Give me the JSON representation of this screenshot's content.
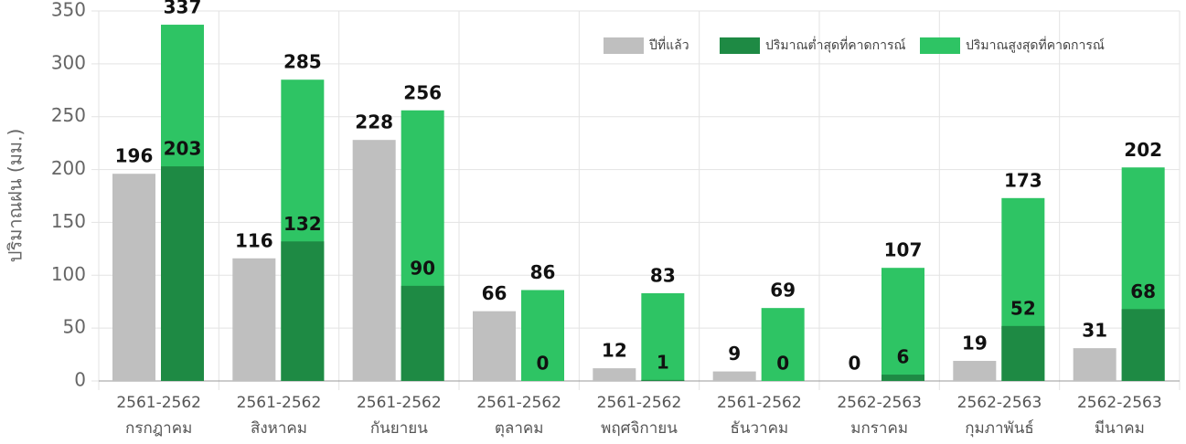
{
  "chart_data": {
    "type": "bar",
    "y_label": "ปริมาณฝน (มม.)",
    "categories": [
      [
        "2561-2562",
        "กรกฎาคม"
      ],
      [
        "2561-2562",
        "สิงหาคม"
      ],
      [
        "2561-2562",
        "กันยายน"
      ],
      [
        "2561-2562",
        "ตุลาคม"
      ],
      [
        "2561-2562",
        "พฤศจิกายน"
      ],
      [
        "2561-2562",
        "ธันวาคม"
      ],
      [
        "2562-2563",
        "มกราคม"
      ],
      [
        "2562-2563",
        "กุมภาพันธ์"
      ],
      [
        "2562-2563",
        "มีนาคม"
      ]
    ],
    "series": [
      {
        "name": "ปีที่แล้ว",
        "color": "#bfbfbf",
        "values": [
          196,
          116,
          228,
          66,
          12,
          9,
          0,
          19,
          31
        ]
      },
      {
        "name": "ปริมาณต่ำสุดที่คาดการณ์",
        "color": "#1e8a44",
        "values": [
          203,
          132,
          90,
          0,
          1,
          0,
          6,
          52,
          68
        ]
      },
      {
        "name": "ปริมาณสูงสุดที่คาดการณ์",
        "color": "#2ec464",
        "values": [
          337,
          285,
          256,
          86,
          83,
          69,
          107,
          173,
          202
        ]
      }
    ],
    "ylim": [
      0,
      350
    ],
    "yticks": [
      0,
      50,
      100,
      150,
      200,
      250,
      300,
      350
    ],
    "grid": true,
    "legend": "top-right"
  }
}
